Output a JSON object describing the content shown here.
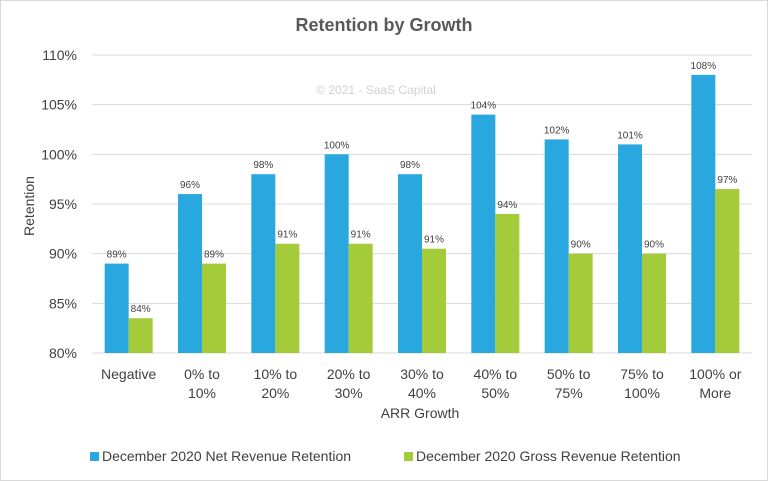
{
  "chart_data": {
    "type": "bar",
    "title": "Retention by Growth",
    "watermark": "© 2021 - SaaS Capital",
    "xlabel": "ARR Growth",
    "ylabel": "Retention",
    "ylim": [
      80,
      110
    ],
    "yticks": [
      80,
      85,
      90,
      95,
      100,
      105,
      110
    ],
    "ytick_labels": [
      "80%",
      "85%",
      "90%",
      "95%",
      "100%",
      "105%",
      "110%"
    ],
    "gridlines": true,
    "legend_position": "bottom",
    "categories": [
      [
        "Negative"
      ],
      [
        "0% to",
        "10%"
      ],
      [
        "10% to",
        "20%"
      ],
      [
        "20% to",
        "30%"
      ],
      [
        "30% to",
        "40%"
      ],
      [
        "40% to",
        "50%"
      ],
      [
        "50% to",
        "75%"
      ],
      [
        "75% to",
        "100%"
      ],
      [
        "100% or",
        "More"
      ]
    ],
    "series": [
      {
        "name": "December 2020 Net Revenue Retention",
        "color": "#29a8e0",
        "values": [
          89,
          96,
          98,
          100,
          98,
          104,
          101.5,
          101,
          108
        ],
        "labels": [
          "89%",
          "96%",
          "98%",
          "100%",
          "98%",
          "104%",
          "102%",
          "101%",
          "108%"
        ]
      },
      {
        "name": "December 2020 Gross Revenue Retention",
        "color": "#a4cc3a",
        "values": [
          83.5,
          89,
          91,
          91,
          90.5,
          94,
          90,
          90,
          96.5
        ],
        "labels": [
          "84%",
          "89%",
          "91%",
          "91%",
          "91%",
          "94%",
          "90%",
          "90%",
          "97%"
        ]
      }
    ]
  }
}
